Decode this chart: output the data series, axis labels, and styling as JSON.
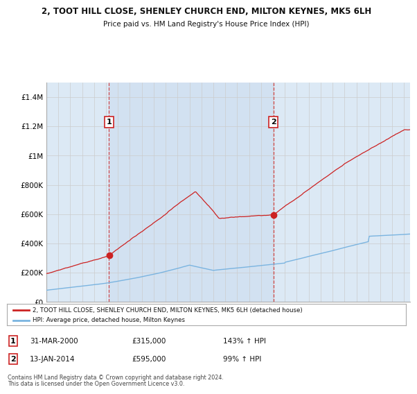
{
  "title": "2, TOOT HILL CLOSE, SHENLEY CHURCH END, MILTON KEYNES, MK5 6LH",
  "subtitle": "Price paid vs. HM Land Registry's House Price Index (HPI)",
  "background_color": "#dce9f7",
  "plot_bg_color": "#dce9f5",
  "hpi_line_color": "#7ab4e0",
  "price_line_color": "#cc2222",
  "shade_color": "#cce0f5",
  "marker1_x": 2000.25,
  "marker2_x": 2014.04,
  "marker1_price": 315000,
  "marker2_price": 595000,
  "legend_price_label": "2, TOOT HILL CLOSE, SHENLEY CHURCH END, MILTON KEYNES, MK5 6LH (detached house)",
  "legend_hpi_label": "HPI: Average price, detached house, Milton Keynes",
  "table_row1": [
    "1",
    "31-MAR-2000",
    "£315,000",
    "143% ↑ HPI"
  ],
  "table_row2": [
    "2",
    "13-JAN-2014",
    "£595,000",
    "99% ↑ HPI"
  ],
  "footer1": "Contains HM Land Registry data © Crown copyright and database right 2024.",
  "footer2": "This data is licensed under the Open Government Licence v3.0.",
  "ylim": [
    0,
    1500000
  ],
  "yticks": [
    0,
    200000,
    400000,
    600000,
    800000,
    1000000,
    1200000,
    1400000
  ],
  "ytick_labels": [
    "£0",
    "£200K",
    "£400K",
    "£600K",
    "£800K",
    "£1M",
    "£1.2M",
    "£1.4M"
  ],
  "xstart": 1995,
  "xend": 2025.5,
  "xticks": [
    1995,
    1996,
    1997,
    1998,
    1999,
    2000,
    2001,
    2002,
    2003,
    2004,
    2005,
    2006,
    2007,
    2008,
    2009,
    2010,
    2011,
    2012,
    2013,
    2014,
    2015,
    2016,
    2017,
    2018,
    2019,
    2020,
    2021,
    2022,
    2023,
    2024,
    2025
  ]
}
